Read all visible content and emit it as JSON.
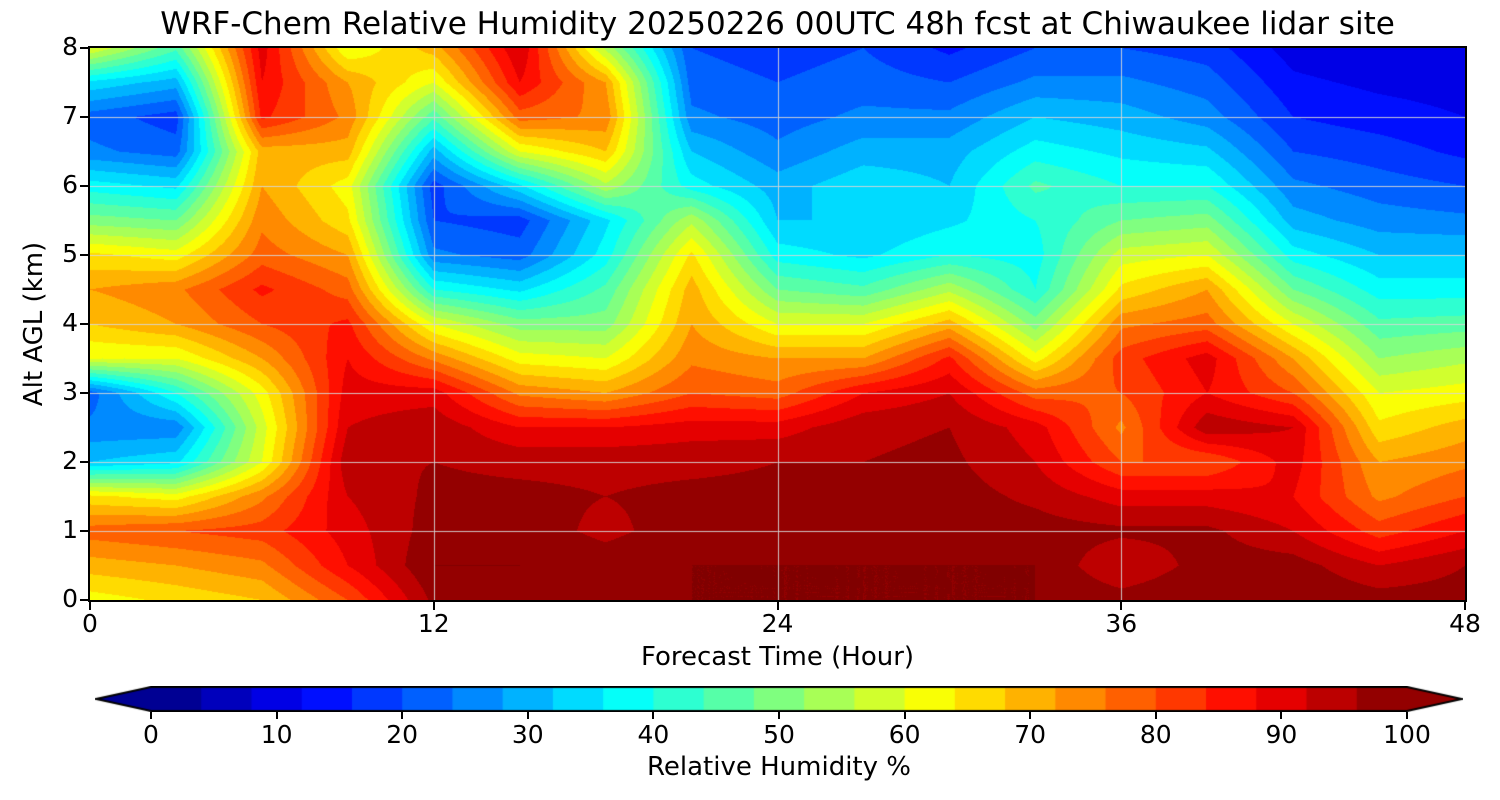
{
  "chart_data": {
    "type": "heatmap",
    "title": "WRF-Chem Relative Humidity 20250226 00UTC 48h fcst at Chiwaukee lidar site",
    "xlabel": "Forecast Time (Hour)",
    "ylabel": "Alt AGL (km)",
    "colorbar_label": "Relative Humidity %",
    "colormap": "jet",
    "zlim": [
      0,
      100
    ],
    "level_step": 4,
    "xlim": [
      0,
      48
    ],
    "ylim": [
      0,
      8
    ],
    "x_ticks": [
      0,
      12,
      24,
      36,
      48
    ],
    "y_ticks": [
      0,
      1,
      2,
      3,
      4,
      5,
      6,
      7,
      8
    ],
    "colorbar_ticks": [
      0,
      10,
      20,
      30,
      40,
      50,
      60,
      70,
      80,
      90,
      100
    ],
    "grid": true,
    "x_hours": [
      0,
      3,
      6,
      9,
      12,
      15,
      18,
      21,
      24,
      27,
      30,
      33,
      36,
      39,
      42,
      45,
      48
    ],
    "y_km": [
      0,
      0.5,
      1,
      1.5,
      2,
      2.5,
      3,
      3.5,
      4,
      4.5,
      5,
      5.5,
      6,
      6.5,
      7,
      7.5,
      8
    ],
    "rh_values_by_altitude": [
      [
        62,
        65,
        68,
        80,
        97,
        100,
        100,
        100,
        100,
        100,
        100,
        100,
        98,
        100,
        100,
        98,
        98
      ],
      [
        70,
        72,
        75,
        88,
        100,
        100,
        98,
        100,
        100,
        100,
        100,
        100,
        92,
        98,
        98,
        92,
        96
      ],
      [
        78,
        80,
        82,
        90,
        98,
        98,
        95,
        98,
        98,
        98,
        98,
        98,
        97,
        97,
        92,
        82,
        88
      ],
      [
        65,
        62,
        75,
        92,
        97,
        97,
        96,
        97,
        97,
        98,
        98,
        95,
        90,
        90,
        88,
        75,
        80
      ],
      [
        32,
        35,
        60,
        95,
        96,
        95,
        95,
        95,
        96,
        96,
        97,
        92,
        80,
        80,
        90,
        72,
        75
      ],
      [
        25,
        25,
        58,
        92,
        95,
        88,
        88,
        90,
        90,
        95,
        96,
        90,
        75,
        95,
        92,
        65,
        70
      ],
      [
        22,
        40,
        62,
        90,
        90,
        75,
        72,
        80,
        78,
        88,
        92,
        78,
        80,
        88,
        80,
        60,
        62
      ],
      [
        60,
        60,
        72,
        88,
        75,
        62,
        60,
        75,
        72,
        72,
        85,
        62,
        82,
        90,
        72,
        52,
        55
      ],
      [
        68,
        72,
        80,
        85,
        60,
        50,
        50,
        72,
        60,
        60,
        70,
        50,
        75,
        78,
        60,
        45,
        46
      ],
      [
        72,
        75,
        85,
        78,
        40,
        35,
        45,
        70,
        48,
        45,
        55,
        40,
        65,
        72,
        48,
        38,
        38
      ],
      [
        65,
        62,
        78,
        72,
        25,
        22,
        38,
        65,
        38,
        35,
        40,
        38,
        58,
        60,
        38,
        32,
        32
      ],
      [
        50,
        48,
        75,
        65,
        20,
        18,
        35,
        55,
        32,
        32,
        35,
        40,
        48,
        50,
        30,
        26,
        25
      ],
      [
        38,
        35,
        72,
        62,
        18,
        35,
        55,
        38,
        30,
        35,
        32,
        45,
        40,
        40,
        25,
        22,
        20
      ],
      [
        25,
        22,
        70,
        70,
        30,
        60,
        68,
        32,
        25,
        30,
        30,
        38,
        35,
        33,
        20,
        18,
        15
      ],
      [
        22,
        18,
        85,
        75,
        45,
        78,
        75,
        25,
        22,
        25,
        25,
        32,
        30,
        26,
        16,
        14,
        12
      ],
      [
        35,
        30,
        88,
        72,
        60,
        88,
        72,
        22,
        20,
        22,
        20,
        25,
        25,
        22,
        13,
        11,
        10
      ],
      [
        60,
        45,
        90,
        60,
        70,
        92,
        55,
        20,
        18,
        20,
        15,
        20,
        20,
        18,
        10,
        8,
        8
      ]
    ]
  }
}
